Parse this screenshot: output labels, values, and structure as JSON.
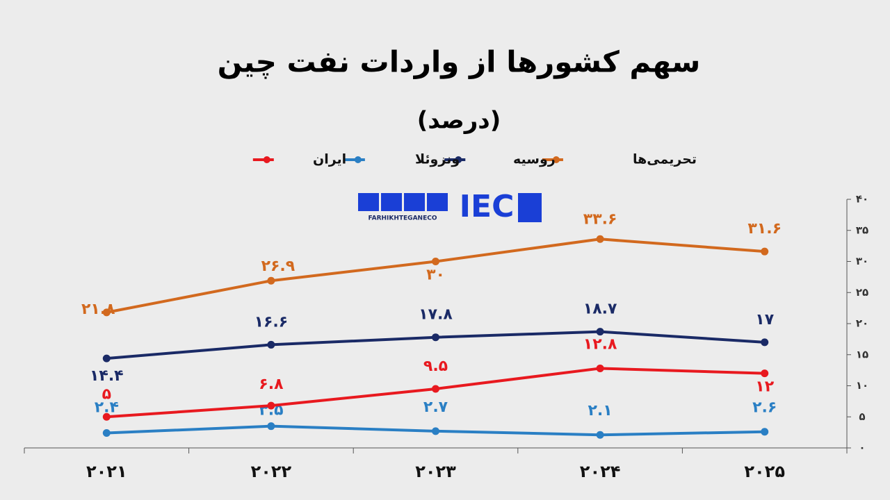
{
  "chart_data": {
    "type": "line",
    "title": "سهم کشورها از واردات نفت چین",
    "subtitle": "(درصد)",
    "logo": {
      "mark": "IEC",
      "handle": "FARHIKHTEGANECO"
    },
    "categories": [
      "۲۰۲۱",
      "۲۰۲۲",
      "۲۰۲۳",
      "۲۰۲۴",
      "۲۰۲۵"
    ],
    "series": [
      {
        "name": "تحریمی‌ها",
        "color": "#d2691e",
        "values": [
          21.8,
          26.9,
          30,
          33.6,
          31.6
        ],
        "value_labels": [
          "۲۱.۸",
          "۲۶.۹",
          "۳۰",
          "۳۳.۶",
          "۳۱.۶"
        ]
      },
      {
        "name": "روسیه",
        "color": "#1a2a66",
        "values": [
          14.4,
          16.6,
          17.8,
          18.7,
          17
        ],
        "value_labels": [
          "۱۴.۴",
          "۱۶.۶",
          "۱۷.۸",
          "۱۸.۷",
          "۱۷"
        ]
      },
      {
        "name": "ونزوئلا",
        "color": "#2a7fc4",
        "values": [
          2.4,
          3.5,
          2.7,
          2.1,
          2.6
        ],
        "value_labels": [
          "۲.۴",
          "۳.۵",
          "۲.۷",
          "۲.۱",
          "۲.۶"
        ]
      },
      {
        "name": "ایران",
        "color": "#e8191f",
        "values": [
          5,
          6.8,
          9.5,
          12.8,
          12
        ],
        "value_labels": [
          "۵",
          "۶.۸",
          "۹.۵",
          "۱۲.۸",
          "۱۲"
        ]
      }
    ],
    "ylim": [
      0,
      40
    ],
    "yticks": [
      {
        "value": 0,
        "label": "۰"
      },
      {
        "value": 5,
        "label": "۵"
      },
      {
        "value": 10,
        "label": "۱۰"
      },
      {
        "value": 15,
        "label": "۱۵"
      },
      {
        "value": 20,
        "label": "۲۰"
      },
      {
        "value": 25,
        "label": "۲۵"
      },
      {
        "value": 30,
        "label": "۳۰"
      },
      {
        "value": 35,
        "label": "۳۵"
      },
      {
        "value": 40,
        "label": "۴۰"
      }
    ],
    "y_axis_side": "right",
    "grid": false
  }
}
